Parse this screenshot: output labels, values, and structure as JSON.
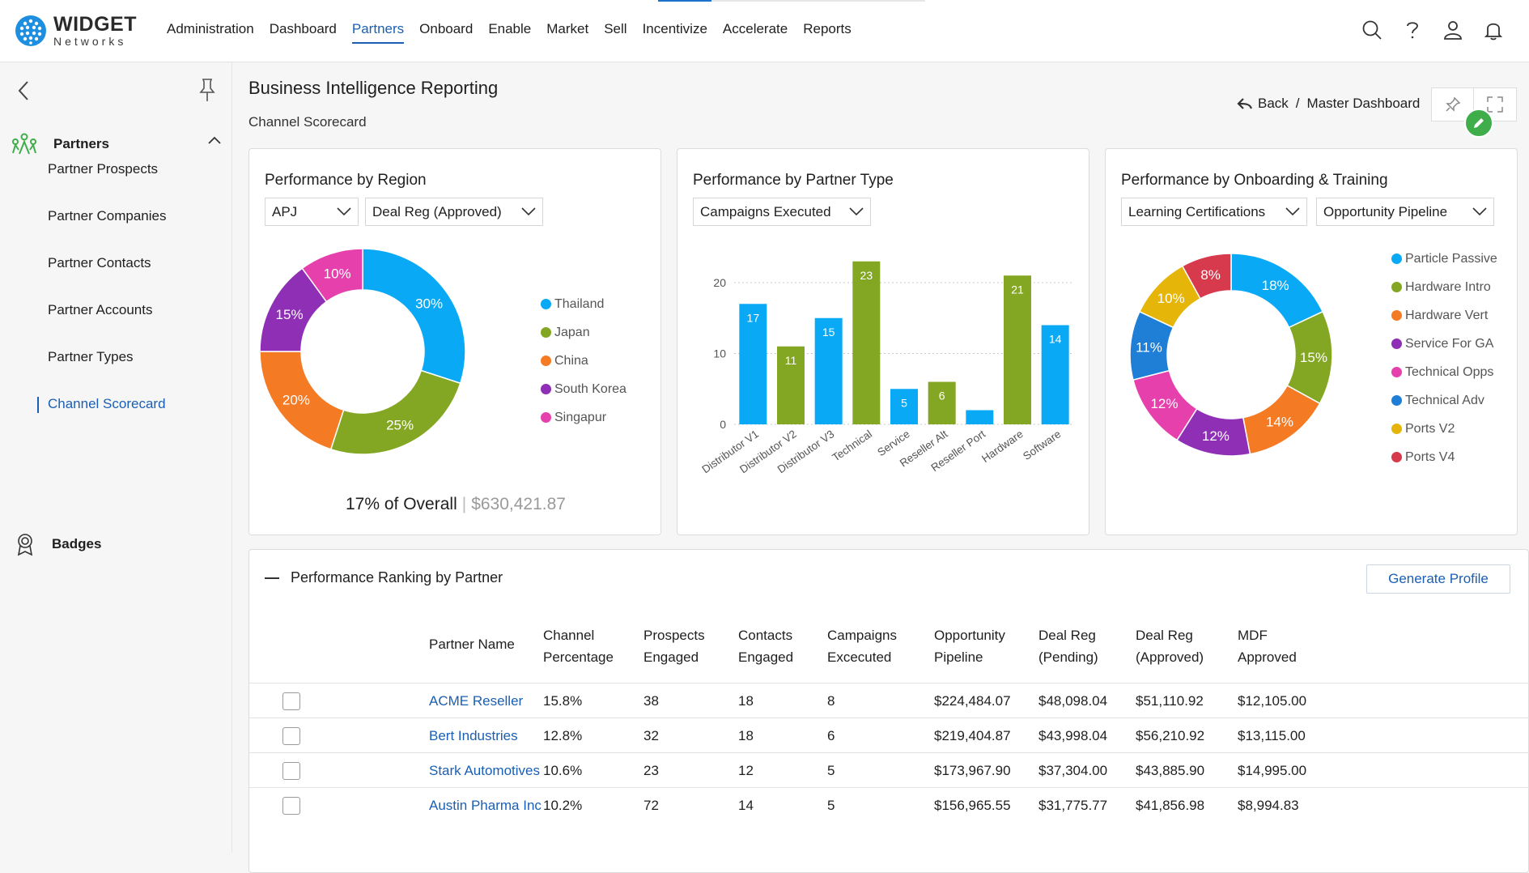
{
  "app": {
    "logo_word": "WIDGET",
    "logo_sub": "Networks",
    "progress_fraction": 0.2
  },
  "nav": [
    "Administration",
    "Dashboard",
    "Partners",
    "Onboard",
    "Enable",
    "Market",
    "Sell",
    "Incentivize",
    "Accelerate",
    "Reports"
  ],
  "nav_active": "Partners",
  "top_icons": [
    "search-icon",
    "help-icon",
    "user-icon",
    "bell-icon"
  ],
  "sidebar": {
    "section": "Partners",
    "items": [
      "Partner Prospects",
      "Partner Companies",
      "Partner Contacts",
      "Partner Accounts",
      "Partner Types",
      "Channel Scorecard"
    ],
    "active": "Channel Scorecard",
    "badges": "Badges"
  },
  "header": {
    "title": "Business Intelligence Reporting",
    "subtitle": "Channel Scorecard",
    "back": "Back",
    "crumb_sep": "/",
    "crumb": "Master Dashboard"
  },
  "cards": {
    "region": {
      "title": "Performance by Region",
      "dd1": "APJ",
      "dd2": "Deal Reg (Approved)",
      "overall_pct": "17% of Overall",
      "overall_amt": "$630,421.87"
    },
    "partner_type": {
      "title": "Performance by Partner Type",
      "dd1": "Campaigns Executed"
    },
    "onboarding": {
      "title": "Performance by Onboarding & Training",
      "dd1": "Learning Certifications",
      "dd2": "Opportunity Pipeline"
    }
  },
  "chart_data": [
    {
      "type": "pie",
      "title": "Performance by Region",
      "categories": [
        "Thailand",
        "Japan",
        "China",
        "South Korea",
        "Singapur"
      ],
      "values": [
        30,
        25,
        20,
        15,
        10
      ],
      "labels": [
        "30%",
        "25%",
        "20%",
        "15%",
        "10%"
      ],
      "colors": [
        "#0aa9f5",
        "#84a723",
        "#f57a24",
        "#8e2fb5",
        "#e640ad"
      ],
      "legend": "right"
    },
    {
      "type": "bar",
      "title": "Performance by Partner Type",
      "categories": [
        "Distributor V1",
        "Distributor V2",
        "Distributor V3",
        "Technical",
        "Service",
        "Reseller Alt",
        "Reseller Port",
        "Hardware",
        "Software"
      ],
      "values": [
        17,
        11,
        15,
        23,
        5,
        6,
        2,
        21,
        14
      ],
      "data_labels": [
        "17",
        "11",
        "15",
        "23",
        "5",
        "6",
        "",
        "21",
        "14"
      ],
      "colors": [
        "#0aa9f5",
        "#84a723",
        "#0aa9f5",
        "#84a723",
        "#0aa9f5",
        "#84a723",
        "#0aa9f5",
        "#84a723",
        "#0aa9f5"
      ],
      "yticks": [
        "0",
        "10",
        "20"
      ],
      "ylim": [
        0,
        24
      ],
      "grid": true
    },
    {
      "type": "pie",
      "title": "Performance by Onboarding & Training",
      "categories": [
        "Particle Passive",
        "Hardware Intro",
        "Hardware Vert",
        "Service For GA",
        "Technical Opps",
        "Technical Adv",
        "Ports V2",
        "Ports V4"
      ],
      "values": [
        18,
        15,
        14,
        12,
        12,
        11,
        10,
        8
      ],
      "labels": [
        "18%",
        "15%",
        "14%",
        "12%",
        "12%",
        "11%",
        "10%",
        "8%"
      ],
      "colors": [
        "#0aa9f5",
        "#84a723",
        "#f57a24",
        "#8e2fb5",
        "#e640ad",
        "#1f7fd6",
        "#e5b50a",
        "#d73a4d"
      ],
      "legend": "right"
    }
  ],
  "table": {
    "title": "Performance Ranking by Partner",
    "generate": "Generate Profile",
    "headers": [
      [
        "Partner Name"
      ],
      [
        "Channel",
        "Percentage"
      ],
      [
        "Prospects",
        "Engaged"
      ],
      [
        "Contacts",
        "Engaged"
      ],
      [
        "Campaigns",
        "Excecuted"
      ],
      [
        "Opportunity",
        "Pipeline"
      ],
      [
        "Deal Reg",
        "(Pending)"
      ],
      [
        "Deal Reg",
        "(Approved)"
      ],
      [
        "MDF",
        "Approved"
      ]
    ],
    "rows": [
      [
        "ACME Reseller",
        "15.8%",
        "38",
        "18",
        "8",
        "$224,484.07",
        "$48,098.04",
        "$51,110.92",
        "$12,105.00"
      ],
      [
        "Bert Industries",
        "12.8%",
        "32",
        "18",
        "6",
        "$219,404.87",
        "$43,998.04",
        "$56,210.92",
        "$13,115.00"
      ],
      [
        "Stark Automotives",
        "10.6%",
        "23",
        "12",
        "5",
        "$173,967.90",
        "$37,304.00",
        "$43,885.90",
        "$14,995.00"
      ],
      [
        "Austin Pharma Inc",
        "10.2%",
        "72",
        "14",
        "5",
        "$156,965.55",
        "$31,775.77",
        "$41,856.98",
        "$8,994.83"
      ]
    ]
  }
}
